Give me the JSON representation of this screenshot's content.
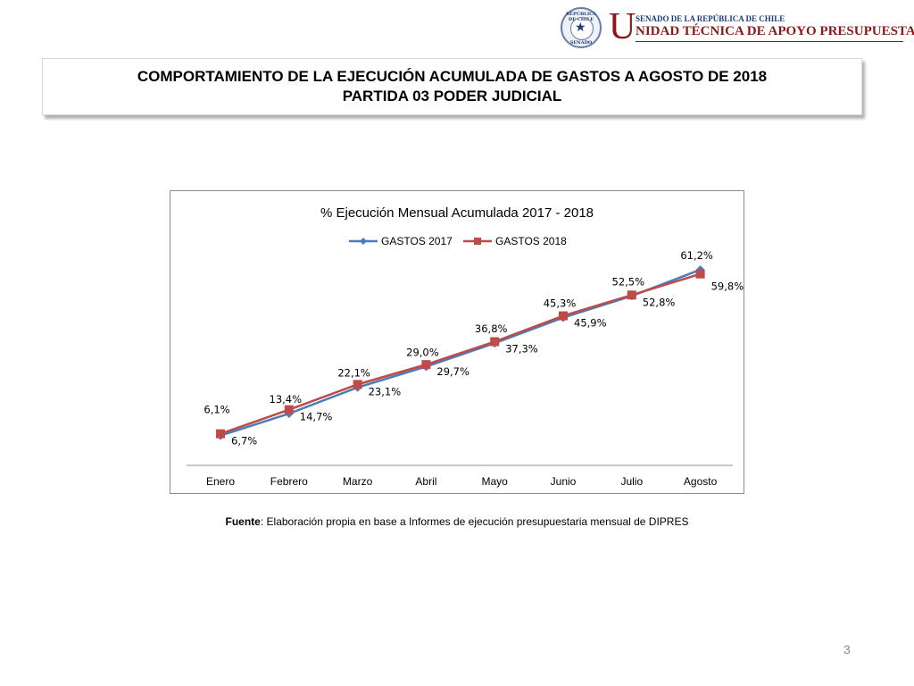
{
  "header": {
    "seal_top": "REPÚBLICA DE CHILE",
    "seal_bottom": "SENADO",
    "logo_letter": "U",
    "logo_senado": "SENADO DE LA REPÚBLICA DE CHILE",
    "logo_unidad": "NIDAD TÉCNICA DE APOYO PRESUPUESTARIO",
    "colors": {
      "navy": "#1d3a7a",
      "maroon": "#8a1a1a"
    }
  },
  "title": {
    "line1": "COMPORTAMIENTO DE LA EJECUCIÓN ACUMULADA DE GASTOS A AGOSTO DE 2018",
    "line2": "PARTIDA 03 PODER JUDICIAL"
  },
  "chart_data": {
    "type": "line",
    "title": "% Ejecución Mensual Acumulada 2017 - 2018",
    "categories": [
      "Enero",
      "Febrero",
      "Marzo",
      "Abril",
      "Mayo",
      "Junio",
      "Julio",
      "Agosto"
    ],
    "series": [
      {
        "name": "GASTOS 2017",
        "color": "#4a7ebb",
        "marker": "diamond",
        "values": [
          6.1,
          13.4,
          22.1,
          29.0,
          36.8,
          45.3,
          52.5,
          61.2
        ],
        "labels": [
          "6,1%",
          "13,4%",
          "22,1%",
          "29,0%",
          "36,8%",
          "45,3%",
          "52,5%",
          "61,2%"
        ]
      },
      {
        "name": "GASTOS 2018",
        "color": "#be4b48",
        "marker": "square",
        "values": [
          6.7,
          14.7,
          23.1,
          29.7,
          37.3,
          45.9,
          52.8,
          59.8
        ],
        "labels": [
          "6,7%",
          "14,7%",
          "23,1%",
          "29,7%",
          "37,3%",
          "45,9%",
          "52,8%",
          "59,8%"
        ]
      }
    ],
    "legend_position": "top",
    "grid": false
  },
  "source": {
    "label": "Fuente",
    "text": ": Elaboración propia en base  a Informes de ejecución presupuestaria mensual de DIPRES"
  },
  "page_number": "3"
}
